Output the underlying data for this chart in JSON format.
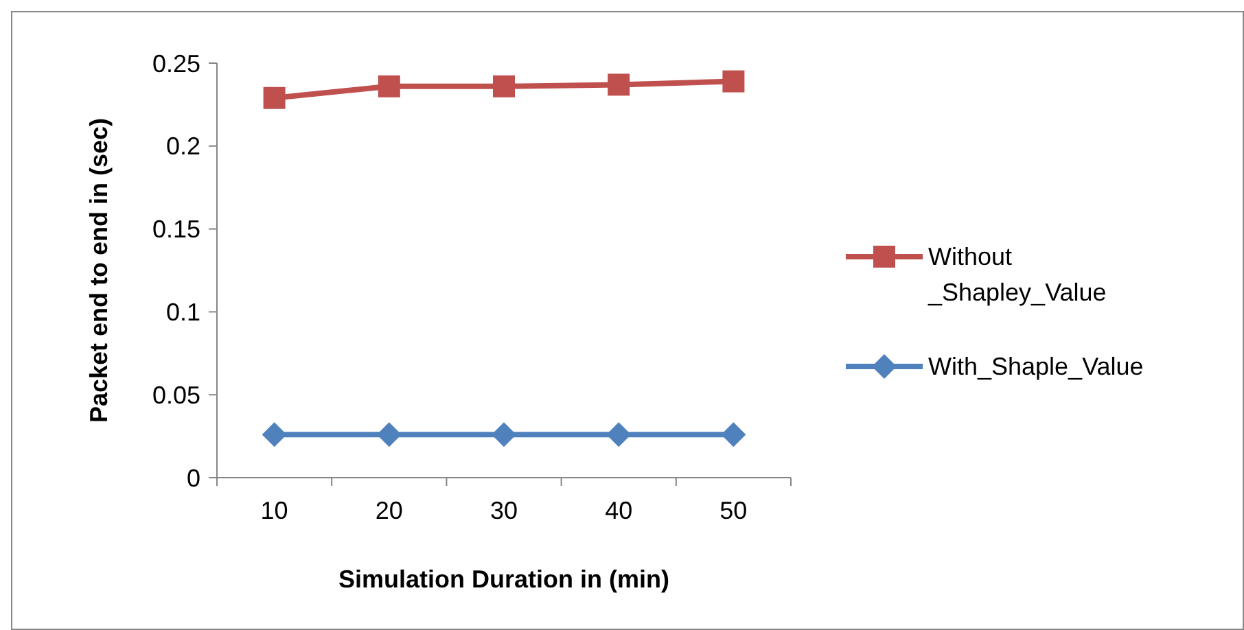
{
  "chart_data": {
    "type": "line",
    "xlabel": "Simulation Duration in (min)",
    "ylabel": "Packet end to end in (sec)",
    "categories": [
      "10",
      "20",
      "30",
      "40",
      "50"
    ],
    "ylim": [
      0,
      0.25
    ],
    "yticks": [
      0,
      0.05,
      0.1,
      0.15,
      0.2,
      0.25
    ],
    "legend": "right",
    "marker": "square",
    "line_style": "solid",
    "grid": false,
    "series": [
      {
        "name": "Without _Shapley_Value",
        "color": "#c0504d",
        "marker": "square",
        "values": [
          0.229,
          0.236,
          0.236,
          0.237,
          0.239
        ]
      },
      {
        "name": "With_Shaple_Value",
        "color": "#4f81bd",
        "marker": "diamond",
        "values": [
          0.026,
          0.026,
          0.026,
          0.026,
          0.026
        ]
      }
    ]
  }
}
